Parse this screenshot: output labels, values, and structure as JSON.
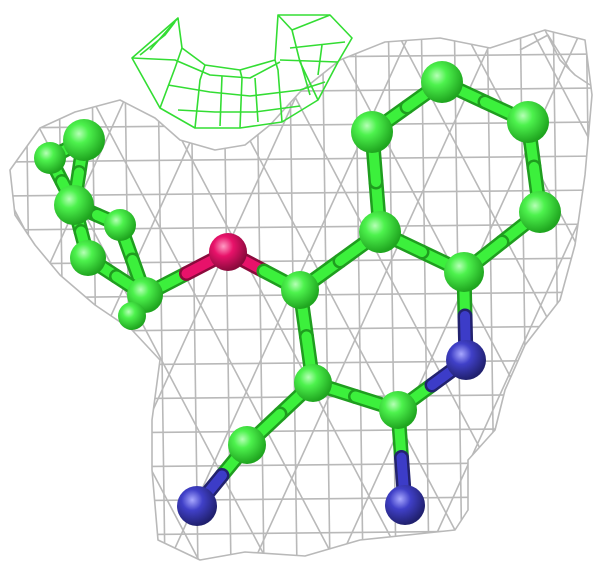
{
  "scene": {
    "background": "#ffffff",
    "mesh_color": "#b9b9b9",
    "density_color": "#33dd33"
  },
  "molecule": {
    "carbon_color": "#3cf03c",
    "oxygen_color": "#e8126a",
    "nitrogen_color": "#3c3cc8"
  }
}
